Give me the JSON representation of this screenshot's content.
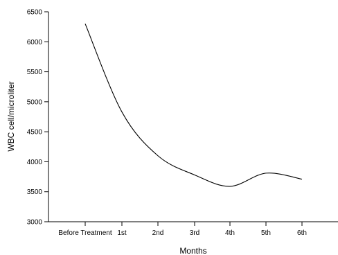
{
  "chart_data": {
    "type": "line",
    "title": "",
    "xlabel": "Months",
    "ylabel": "WBC cell/microliter",
    "categories": [
      "Before Treatment",
      "1st",
      "2nd",
      "3rd",
      "4th",
      "5th",
      "6th"
    ],
    "series": [
      {
        "values": [
          6300,
          4830,
          4100,
          3780,
          3590,
          3810,
          3710
        ]
      }
    ],
    "ylim": [
      3000,
      6500
    ],
    "yticks": [
      3000,
      3500,
      4000,
      4500,
      5000,
      5500,
      6000,
      6500
    ],
    "grid": false,
    "legend": "none",
    "line_color": "#000000",
    "smooth": true
  }
}
